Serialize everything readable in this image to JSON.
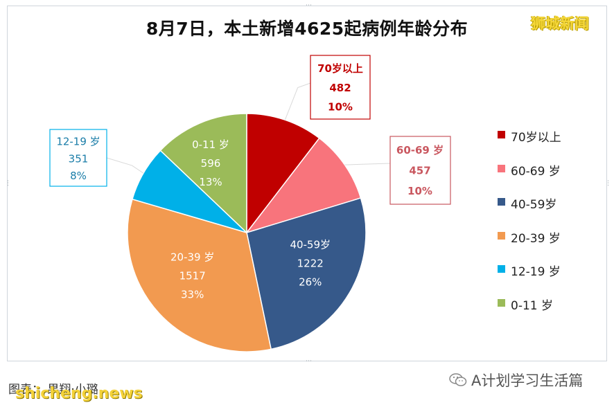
{
  "title": "8月7日，本土新增4625起病例年龄分布",
  "watermark": "狮城新闻",
  "footer": {
    "left_text": "图表：",
    "left_author": "果翔·小璐",
    "site_watermark": "shicheng.news",
    "account": "A计划学习生活篇",
    "account_icon": "wechat-icon"
  },
  "chart_data": {
    "type": "pie",
    "title": "8月7日，本土新增4625起病例年龄分布",
    "total": 4625,
    "legend_position": "right",
    "slices": [
      {
        "label": "70岁以上",
        "value": 482,
        "percent": "10%",
        "color": "#c00000",
        "legend": "70岁以上"
      },
      {
        "label": "60-69 岁",
        "value": 457,
        "percent": "10%",
        "color": "#f8747c",
        "legend": "60-69 岁"
      },
      {
        "label": "40-59岁",
        "value": 1222,
        "percent": "26%",
        "color": "#36598a",
        "legend": "40-59岁"
      },
      {
        "label": "20-39 岁",
        "value": 1517,
        "percent": "33%",
        "color": "#f29a50",
        "legend": "20-39 岁"
      },
      {
        "label": "12-19 岁",
        "value": 351,
        "percent": "8%",
        "color": "#00b0e8",
        "legend": "12-19 岁"
      },
      {
        "label": "0-11 岁",
        "value": 596,
        "percent": "13%",
        "color": "#9bbb59",
        "legend": "0-11 岁"
      }
    ]
  }
}
